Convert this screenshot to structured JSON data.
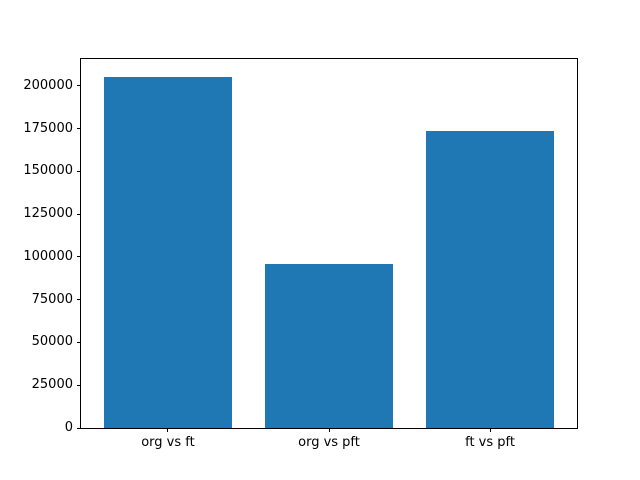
{
  "chart_data": {
    "type": "bar",
    "title": "",
    "xlabel": "",
    "ylabel": "",
    "categories": [
      "org vs ft",
      "org vs pft",
      "ft vs pft"
    ],
    "values": [
      205000,
      96000,
      173500
    ],
    "bar_color": "#1f77b4",
    "ylim": [
      0,
      215650
    ],
    "yticks": [
      0,
      25000,
      50000,
      75000,
      100000,
      125000,
      150000,
      175000,
      200000
    ],
    "xlim": [
      -0.54,
      2.54
    ],
    "bar_width": 0.8,
    "grid": false,
    "legend": "none"
  }
}
